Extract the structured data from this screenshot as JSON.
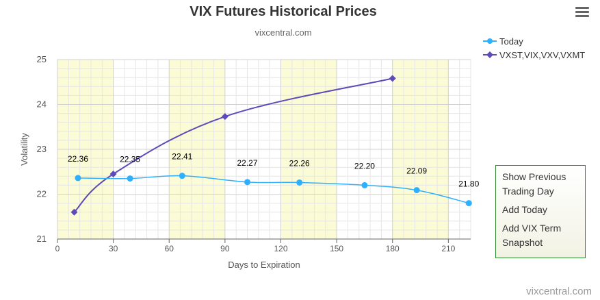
{
  "header": {
    "title": "VIX Futures Historical Prices",
    "subtitle": "vixcentral.com"
  },
  "menu": {
    "icon": "hamburger-menu-icon"
  },
  "legend": {
    "items": [
      {
        "label": "Today",
        "color": "#2fb0ff"
      },
      {
        "label": "VXST,VIX,VXV,VXMT",
        "color": "#5c4bb8"
      }
    ]
  },
  "side_panel": {
    "links": [
      "Show Previous Trading Day",
      "Add Today",
      "Add VIX Term Snapshot"
    ]
  },
  "credit": "vixcentral.com",
  "chart_data": {
    "type": "line",
    "title": "VIX Futures Historical Prices",
    "subtitle": "vixcentral.com",
    "xlabel": "Days to Expiration",
    "ylabel": "Volatility",
    "xlim": [
      0,
      222
    ],
    "ylim": [
      21,
      25
    ],
    "xticks": [
      0,
      30,
      60,
      90,
      120,
      150,
      180,
      210
    ],
    "yticks": [
      21,
      22,
      23,
      24,
      25
    ],
    "grid": true,
    "legend_position": "top-right",
    "bands": [
      [
        0,
        30
      ],
      [
        60,
        90
      ],
      [
        120,
        150
      ],
      [
        180,
        210
      ]
    ],
    "band_color": "#fbfbd6",
    "series": [
      {
        "name": "Today",
        "color": "#2fb0ff",
        "marker": "circle",
        "x": [
          11,
          39,
          67,
          102,
          130,
          165,
          193,
          221
        ],
        "y": [
          22.36,
          22.35,
          22.41,
          22.27,
          22.26,
          22.2,
          22.09,
          21.8
        ],
        "labels": [
          "22.36",
          "22.35",
          "22.41",
          "22.27",
          "22.26",
          "22.20",
          "22.09",
          "21.80"
        ]
      },
      {
        "name": "VXST,VIX,VXV,VXMT",
        "color": "#5c4bb8",
        "marker": "diamond",
        "x": [
          9,
          30,
          90,
          180
        ],
        "y": [
          21.6,
          22.45,
          23.73,
          24.58
        ]
      }
    ]
  }
}
